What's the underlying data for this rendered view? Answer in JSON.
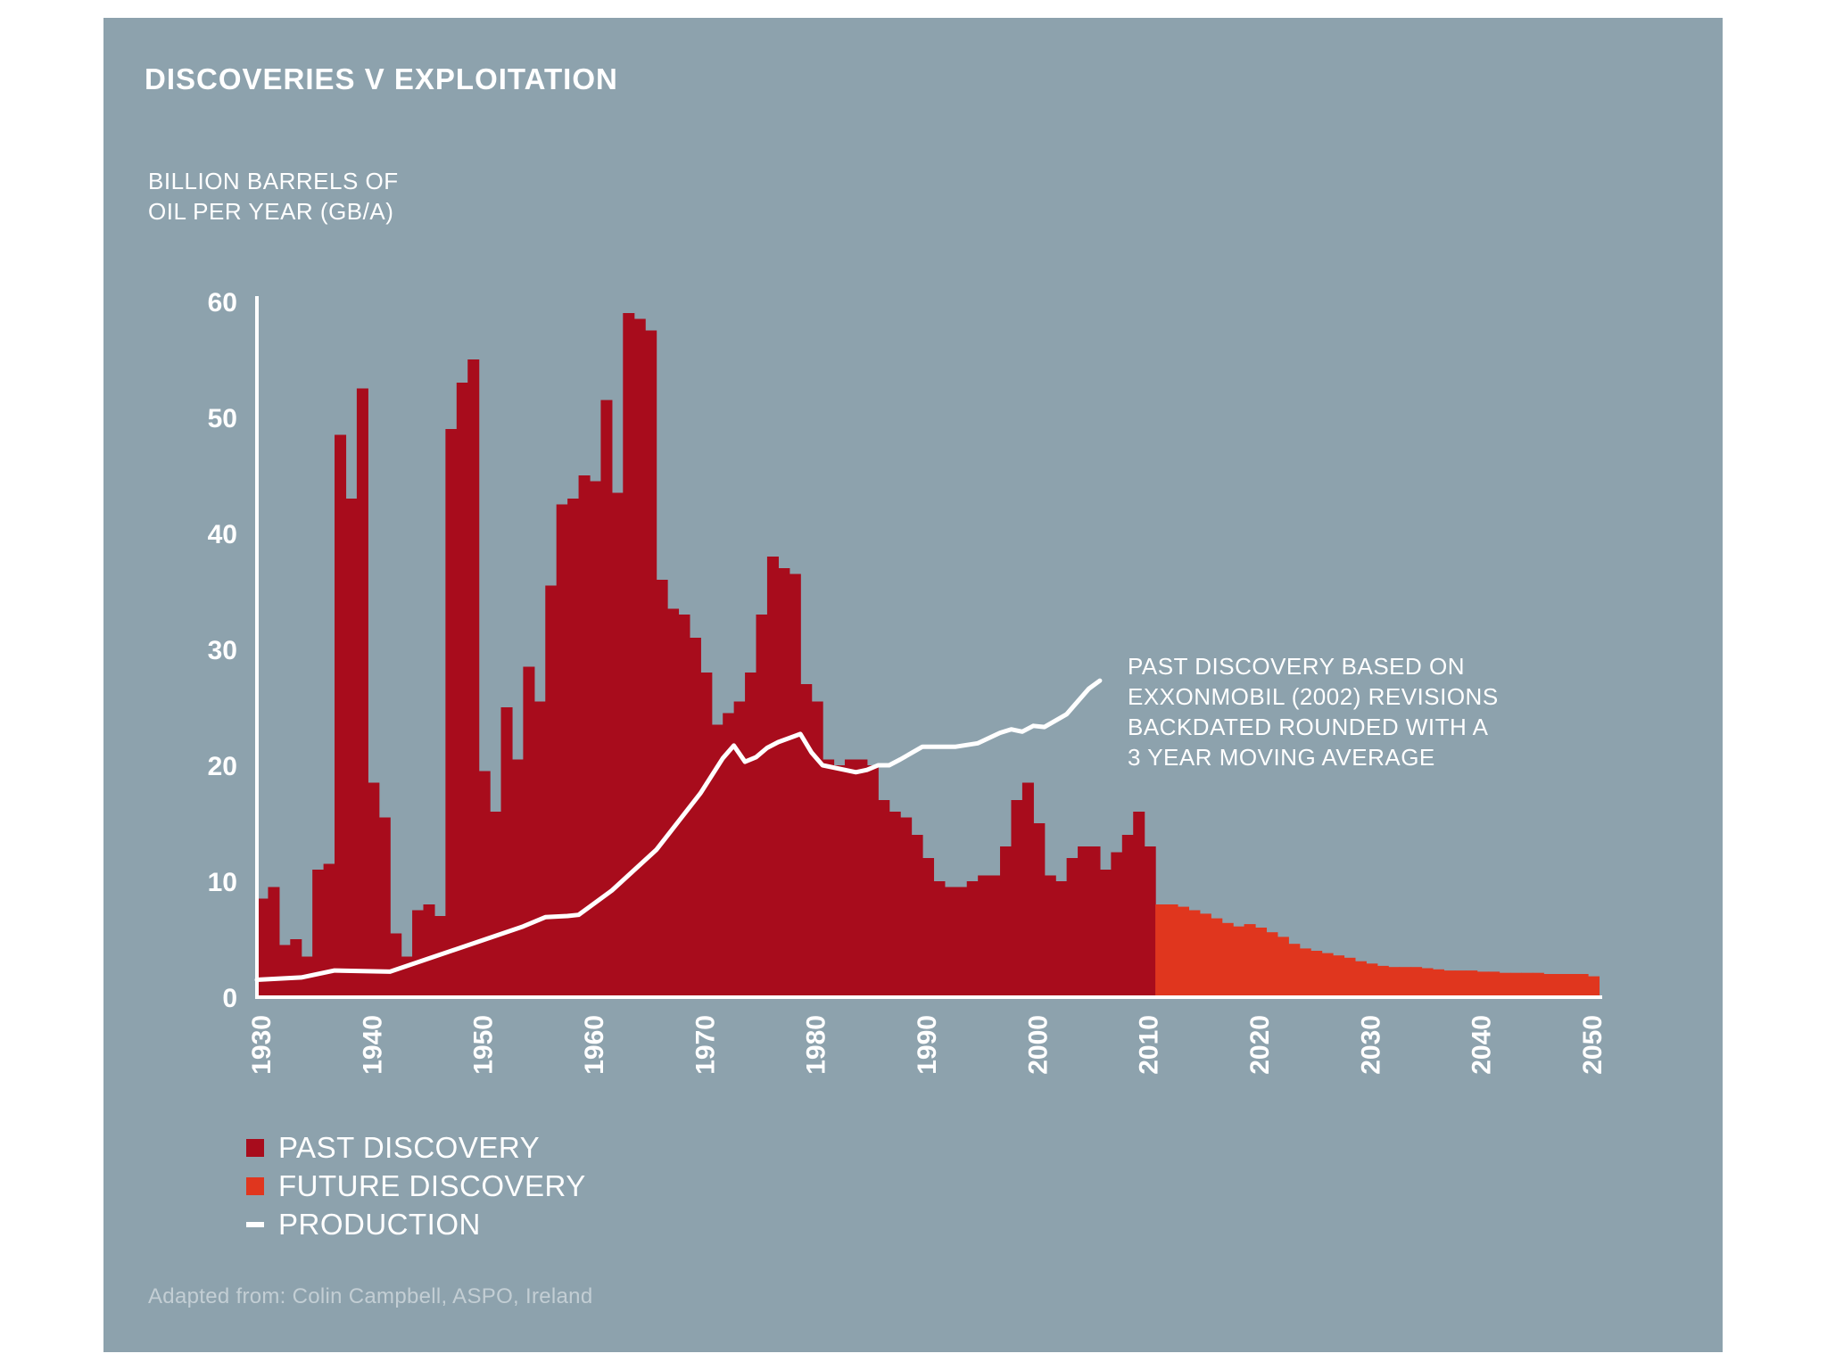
{
  "title": "DISCOVERIES V EXPLOITATION",
  "colors": {
    "background": "#8da2ad",
    "past_discovery": "#a80c1c",
    "future_discovery": "#e0361e",
    "production": "#ffffff"
  },
  "chart_data": {
    "type": "bar",
    "title": "DISCOVERIES V EXPLOITATION",
    "ylabel_lines": [
      "BILLION BARRELS OF",
      "OIL PER YEAR (GB/A)"
    ],
    "xlabel": "",
    "xlim": [
      1930,
      2050
    ],
    "ylim": [
      0,
      60
    ],
    "yticks": [
      "0",
      "10",
      "20",
      "30",
      "40",
      "50",
      "60"
    ],
    "xticks": [
      "1930",
      "1940",
      "1950",
      "1960",
      "1970",
      "1980",
      "1990",
      "2000",
      "2010",
      "2020",
      "2030",
      "2040",
      "2050"
    ],
    "legend": [
      {
        "label": "PAST DISCOVERY",
        "kind": "bar"
      },
      {
        "label": "FUTURE DISCOVERY",
        "kind": "bar"
      },
      {
        "label": "PRODUCTION",
        "kind": "line"
      }
    ],
    "annotation": [
      "PAST DISCOVERY BASED ON",
      "EXXONMOBIL (2002) REVISIONS",
      "BACKDATED ROUNDED WITH A",
      "3 YEAR MOVING AVERAGE"
    ],
    "series": [
      {
        "name": "PAST DISCOVERY",
        "start_year": 1930,
        "values": [
          8.5,
          9.5,
          4.5,
          5,
          3.5,
          11,
          11.5,
          48.5,
          43,
          52.5,
          18.5,
          15.5,
          5.5,
          3.5,
          7.5,
          8,
          7,
          49,
          53,
          55,
          19.5,
          16,
          25,
          20.5,
          28.5,
          25.5,
          35.5,
          42.5,
          43,
          45,
          44.5,
          51.5,
          43.5,
          59,
          58.5,
          57.5,
          36,
          33.5,
          33,
          31,
          28,
          23.5,
          24.5,
          25.5,
          28,
          33,
          38,
          37,
          36.5,
          27,
          25.5,
          20.5,
          20,
          20.5,
          20.5,
          20,
          17,
          16,
          15.5,
          14,
          12,
          10,
          9.5,
          9.5,
          10,
          10.5,
          10.5,
          13,
          17,
          18.5,
          15,
          10.5,
          10,
          12,
          13,
          13,
          11,
          12.5,
          14,
          16,
          13
        ]
      },
      {
        "name": "FUTURE DISCOVERY",
        "start_year": 2011,
        "values": [
          8,
          8,
          7.8,
          7.5,
          7.2,
          6.8,
          6.4,
          6.1,
          6.3,
          6,
          5.6,
          5.2,
          4.6,
          4.2,
          4,
          3.8,
          3.6,
          3.4,
          3.1,
          2.9,
          2.7,
          2.6,
          2.6,
          2.6,
          2.5,
          2.4,
          2.3,
          2.3,
          2.3,
          2.2,
          2.2,
          2.1,
          2.1,
          2.1,
          2.1,
          2,
          2,
          2,
          2,
          1.8
        ]
      }
    ],
    "line": {
      "name": "PRODUCTION",
      "x": [
        1930,
        1934,
        1937,
        1942,
        1946,
        1950,
        1954,
        1956,
        1958,
        1959,
        1962,
        1966,
        1970,
        1972,
        1973,
        1974,
        1975,
        1976,
        1977,
        1979,
        1980,
        1981,
        1983,
        1984,
        1985,
        1986,
        1987,
        1988,
        1990,
        1993,
        1995,
        1997,
        1998,
        1999,
        2000,
        2001,
        2003,
        2005,
        2006
      ],
      "y": [
        1.5,
        1.7,
        2.3,
        2.2,
        3.5,
        4.8,
        6.1,
        6.9,
        7,
        7.1,
        9.2,
        12.7,
        17.6,
        20.6,
        21.7,
        20.3,
        20.7,
        21.5,
        22,
        22.7,
        21.1,
        20,
        19.6,
        19.4,
        19.6,
        20,
        20,
        20.5,
        21.6,
        21.6,
        21.9,
        22.8,
        23.1,
        22.9,
        23.4,
        23.3,
        24.4,
        26.6,
        27.3
      ]
    }
  },
  "source": "Adapted from: Colin Campbell, ASPO, Ireland"
}
